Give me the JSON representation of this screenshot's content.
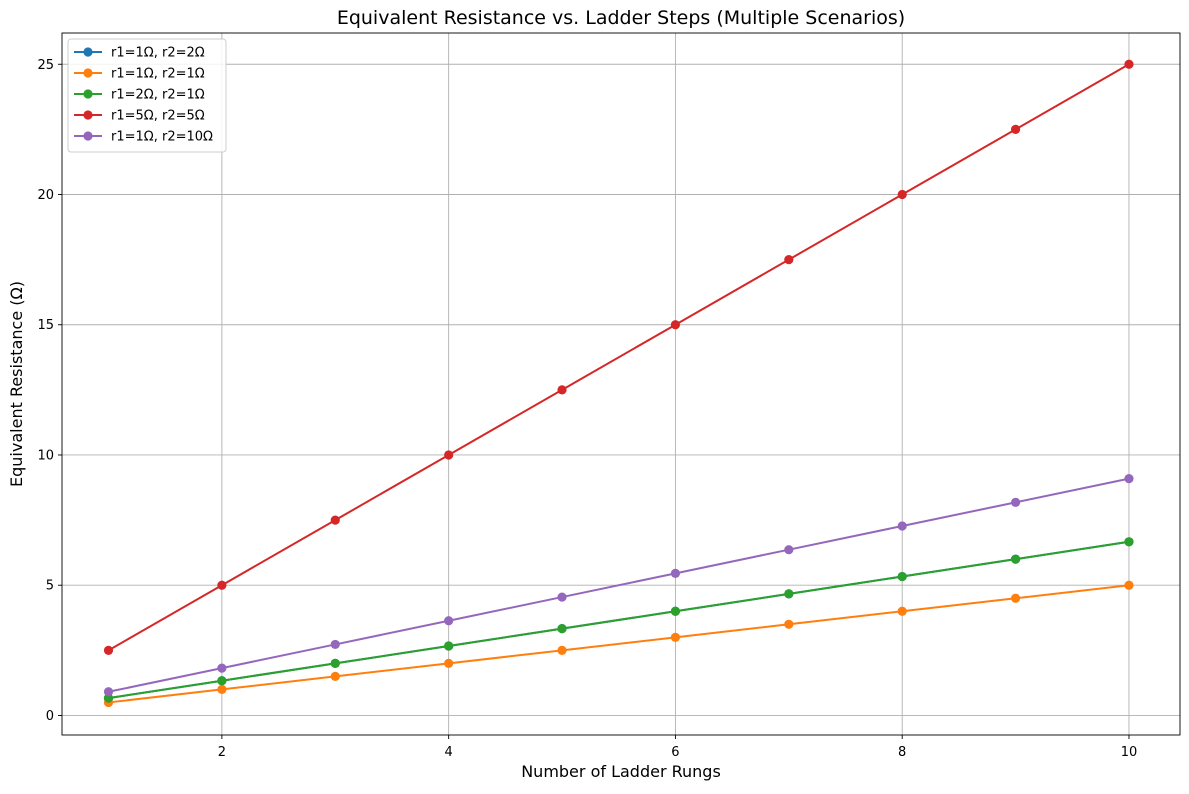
{
  "chart_data": {
    "type": "line",
    "title": "Equivalent Resistance vs. Ladder Steps (Multiple Scenarios)",
    "xlabel": "Number of Ladder Rungs",
    "ylabel": "Equivalent Resistance (Ω)",
    "x": [
      1,
      2,
      3,
      4,
      5,
      6,
      7,
      8,
      9,
      10
    ],
    "xlim": [
      0.59,
      10.45
    ],
    "ylim": [
      -0.75,
      26.2
    ],
    "xticks": [
      2,
      4,
      6,
      8,
      10
    ],
    "yticks": [
      0,
      5,
      10,
      15,
      20,
      25
    ],
    "grid": true,
    "legend_position": "top-left",
    "series": [
      {
        "name": "r1=1Ω, r2=2Ω",
        "color": "#1f77b4",
        "values": [
          0.667,
          1.333,
          2.0,
          2.667,
          3.333,
          4.0,
          4.667,
          5.333,
          6.0,
          6.667
        ]
      },
      {
        "name": "r1=1Ω, r2=1Ω",
        "color": "#ff7f0e",
        "values": [
          0.5,
          1.0,
          1.5,
          2.0,
          2.5,
          3.0,
          3.5,
          4.0,
          4.5,
          5.0
        ]
      },
      {
        "name": "r1=2Ω, r2=1Ω",
        "color": "#2ca02c",
        "values": [
          0.667,
          1.333,
          2.0,
          2.667,
          3.333,
          4.0,
          4.667,
          5.333,
          6.0,
          6.667
        ]
      },
      {
        "name": "r1=5Ω, r2=5Ω",
        "color": "#d62728",
        "values": [
          2.5,
          5.0,
          7.5,
          10.0,
          12.5,
          15.0,
          17.5,
          20.0,
          22.5,
          25.0
        ]
      },
      {
        "name": "r1=1Ω, r2=10Ω",
        "color": "#9467bd",
        "values": [
          0.909,
          1.818,
          2.727,
          3.636,
          4.545,
          5.455,
          6.364,
          7.273,
          8.182,
          9.091
        ]
      }
    ]
  }
}
